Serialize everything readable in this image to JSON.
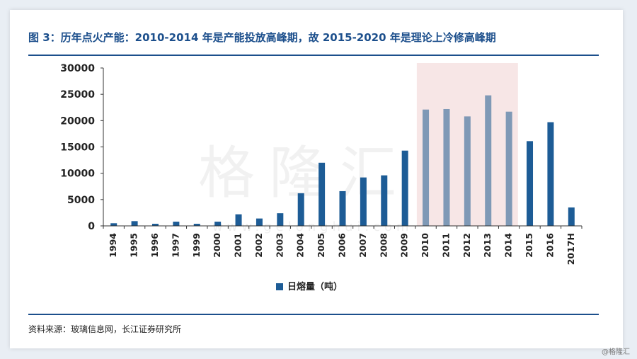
{
  "figure": {
    "title": "图 3：历年点火产能：2010-2014 年是产能投放高峰期，故 2015-2020 年是理论上冷修高峰期",
    "source": "资料来源：玻璃信息网，长江证券研究所",
    "watermark": "格隆汇",
    "watermark_url": "www.gelonghui.com",
    "credit": "@格隆汇"
  },
  "chart_data": {
    "type": "bar",
    "categories": [
      "1994",
      "1995",
      "1996",
      "1997",
      "1999",
      "2000",
      "2001",
      "2002",
      "2003",
      "2004",
      "2005",
      "2006",
      "2007",
      "2008",
      "2009",
      "2010",
      "2011",
      "2012",
      "2013",
      "2014",
      "2015",
      "2016",
      "2017H"
    ],
    "series": [
      {
        "name": "日熔量（吨）",
        "values": [
          500,
          900,
          400,
          800,
          400,
          800,
          2200,
          1400,
          2400,
          6200,
          12000,
          6600,
          9200,
          9600,
          14300,
          22100,
          22200,
          20800,
          24800,
          21700,
          16100,
          19700,
          3500
        ]
      }
    ],
    "ylim": [
      0,
      30000
    ],
    "yticks": [
      "30000",
      "25000",
      "20000",
      "15000",
      "10000",
      "5000",
      "0"
    ],
    "highlight_range": [
      "2010",
      "2014"
    ],
    "legend_position": "bottom-center",
    "grid": false,
    "colors": {
      "bar": "#1d5c96",
      "highlight_bar": "#7f99b6",
      "highlight_band": "#f7e6e6"
    }
  }
}
